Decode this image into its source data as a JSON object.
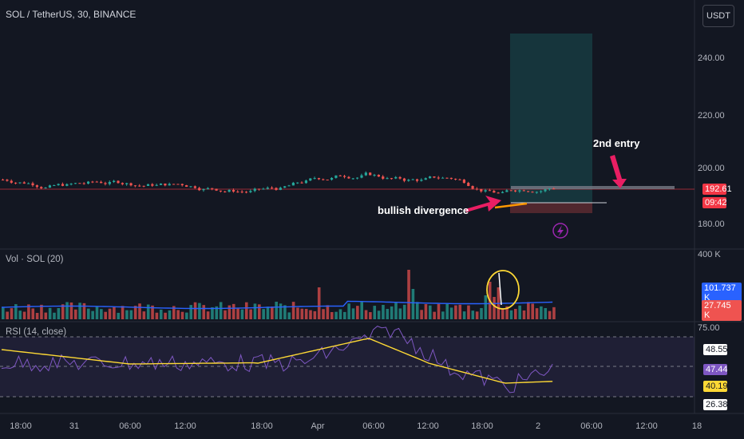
{
  "header": {
    "symbol_title": "SOL / TetherUS, 30, BINANCE",
    "currency_button": "USDT"
  },
  "price_axis": {
    "labels": [
      "240.00",
      "220.00",
      "200.00",
      "180.00"
    ],
    "last_price": "192.61",
    "countdown": "09:42"
  },
  "volume_pane": {
    "title": "Vol · SOL (20)",
    "axis_label": "400 K",
    "ma_value": "101.737 K",
    "volume_value": "27.745 K"
  },
  "rsi_pane": {
    "title": "RSI (14, close)",
    "level_75": "75.00",
    "value_a": "48.55",
    "value_b": "47.44",
    "value_c": "40.19",
    "value_d": "26.38"
  },
  "time_axis": {
    "labels": [
      "18:00",
      "31",
      "06:00",
      "12:00",
      "18:00",
      "Apr",
      "06:00",
      "12:00",
      "18:00",
      "2",
      "06:00",
      "12:00",
      "18"
    ]
  },
  "annotations": {
    "bullish": "bullish divergence",
    "entry": "2nd entry"
  },
  "colors": {
    "up": "#26a69a",
    "down": "#ef5350",
    "background": "#131722",
    "arrow": "#e91e63",
    "rsi_line": "#7e57c2",
    "rsi_ma": "#fdd835",
    "vol_ma": "#2962ff"
  }
}
